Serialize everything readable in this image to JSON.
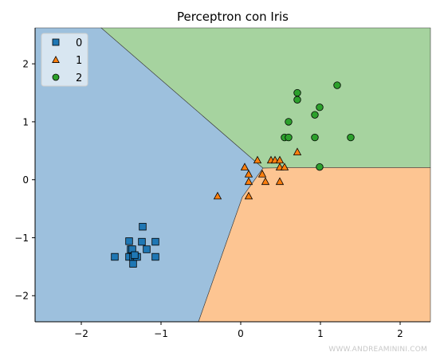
{
  "chart_data": {
    "type": "scatter",
    "title": "Perceptron con Iris",
    "xlabel": "",
    "ylabel": "",
    "xlim": [
      -2.58,
      2.38
    ],
    "ylim": [
      -2.45,
      2.62
    ],
    "x_ticks": [
      -2,
      -1,
      0,
      1,
      2
    ],
    "y_ticks": [
      -2,
      -1,
      0,
      1,
      2
    ],
    "x_tick_labels": [
      "−2",
      "−1",
      "0",
      "1",
      "2"
    ],
    "y_tick_labels": [
      "−2",
      "−1",
      "0",
      "1",
      "2"
    ],
    "grid": false,
    "legend_position": "top-left",
    "regions": [
      {
        "class": "0",
        "color": "#9dc0dd",
        "polygon": [
          [
            -2.58,
            2.62
          ],
          [
            -1.75,
            2.62
          ],
          [
            0.28,
            0.2
          ],
          [
            0.02,
            -0.3
          ],
          [
            -0.53,
            -2.45
          ],
          [
            -2.58,
            -2.45
          ]
        ]
      },
      {
        "class": "2",
        "color": "#a6d39f",
        "polygon": [
          [
            -1.75,
            2.62
          ],
          [
            2.38,
            2.62
          ],
          [
            2.38,
            0.21
          ],
          [
            0.62,
            0.21
          ],
          [
            0.28,
            0.2
          ]
        ]
      },
      {
        "class": "1",
        "color": "#fdc592",
        "polygon": [
          [
            0.28,
            0.2
          ],
          [
            0.62,
            0.21
          ],
          [
            2.38,
            0.21
          ],
          [
            2.38,
            -2.45
          ],
          [
            -0.53,
            -2.45
          ],
          [
            0.02,
            -0.3
          ]
        ]
      }
    ],
    "series": [
      {
        "name": "0",
        "marker": "square",
        "color": "#1f77b4",
        "points": [
          [
            -1.23,
            -0.81
          ],
          [
            -1.4,
            -1.06
          ],
          [
            -1.24,
            -1.07
          ],
          [
            -1.07,
            -1.07
          ],
          [
            -1.38,
            -1.2
          ],
          [
            -1.18,
            -1.2
          ],
          [
            -1.58,
            -1.33
          ],
          [
            -1.4,
            -1.33
          ],
          [
            -1.35,
            -1.33
          ],
          [
            -1.32,
            -1.33
          ],
          [
            -1.3,
            -1.33
          ],
          [
            -1.07,
            -1.33
          ],
          [
            -1.35,
            -1.45
          ],
          [
            -1.36,
            -1.2
          ],
          [
            -1.33,
            -1.3
          ]
        ]
      },
      {
        "name": "1",
        "marker": "triangle",
        "color": "#ff7f0e",
        "points": [
          [
            -0.29,
            -0.28
          ],
          [
            0.05,
            0.22
          ],
          [
            0.1,
            0.1
          ],
          [
            0.1,
            -0.28
          ],
          [
            0.1,
            -0.03
          ],
          [
            0.21,
            0.34
          ],
          [
            0.27,
            0.1
          ],
          [
            0.31,
            -0.03
          ],
          [
            0.38,
            0.34
          ],
          [
            0.43,
            0.34
          ],
          [
            0.49,
            0.34
          ],
          [
            0.49,
            0.22
          ],
          [
            0.49,
            -0.03
          ],
          [
            0.55,
            0.22
          ],
          [
            0.71,
            0.48
          ]
        ]
      },
      {
        "name": "2",
        "marker": "circle",
        "color": "#2ca02c",
        "points": [
          [
            0.55,
            0.73
          ],
          [
            0.6,
            0.73
          ],
          [
            0.6,
            1.0
          ],
          [
            0.71,
            1.5
          ],
          [
            0.71,
            1.38
          ],
          [
            0.93,
            1.12
          ],
          [
            0.93,
            0.73
          ],
          [
            0.99,
            1.25
          ],
          [
            0.99,
            0.22
          ],
          [
            1.21,
            1.63
          ],
          [
            1.38,
            0.73
          ]
        ]
      }
    ]
  },
  "watermark": "WWW.ANDREAMININI.COM"
}
